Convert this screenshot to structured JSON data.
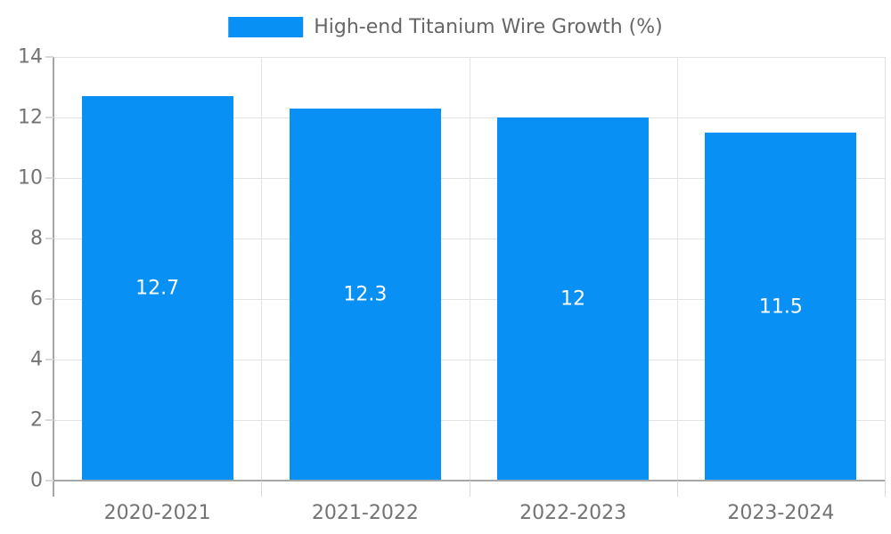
{
  "chart_data": {
    "type": "bar",
    "title": "",
    "legend_label": "High-end Titanium Wire Growth (%)",
    "legend_position": "top",
    "categories": [
      "2020-2021",
      "2021-2022",
      "2022-2023",
      "2023-2024"
    ],
    "series": [
      {
        "name": "High-end Titanium Wire Growth (%)",
        "values": [
          12.7,
          12.3,
          12,
          11.5
        ],
        "value_labels": [
          "12.7",
          "12.3",
          "12",
          "11.5"
        ]
      }
    ],
    "xlabel": "",
    "ylabel": "",
    "ylim": [
      0,
      14
    ],
    "yticks": [
      0,
      2,
      4,
      6,
      8,
      10,
      12,
      14
    ],
    "grid": true
  },
  "colors": {
    "bar": "#0990f5",
    "grid": "#e3e3e3",
    "axis_line": "#a6a6a6",
    "tick": "#d9d9d9",
    "axis_text": "#737373",
    "legend_text": "#666666",
    "value_text": "#ffffff",
    "background": "#ffffff"
  }
}
